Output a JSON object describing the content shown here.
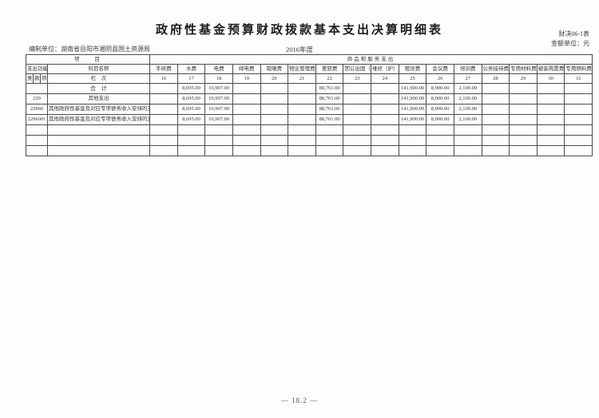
{
  "page": {
    "title": "政府性基金预算财政拨款基本支出决算明细表",
    "form_code": "财决06-1表",
    "amount_unit": "金额单位：元",
    "prepared_by": "编制单位：湖南省岳阳市湘阴县国土资源局",
    "fiscal_year": "2016年度",
    "page_number": "— 18.2 —"
  },
  "table": {
    "project_header": "项　　目",
    "group_header": "商品和服务支出",
    "code_header": "支出功能分类科目编码",
    "subject_header": "科目名称",
    "code_levels": [
      "类",
      "款",
      "项"
    ],
    "column_index_label": "栏　次",
    "columns": [
      {
        "label": "手续费",
        "index": "16"
      },
      {
        "label": "水费",
        "index": "17"
      },
      {
        "label": "电费",
        "index": "18"
      },
      {
        "label": "邮电费",
        "index": "19"
      },
      {
        "label": "取暖费",
        "index": "20"
      },
      {
        "label": "物业管理费",
        "index": "21"
      },
      {
        "label": "差旅费",
        "index": "22"
      },
      {
        "label": "因公出国（境）费用",
        "index": "23"
      },
      {
        "label": "维修（护）费",
        "index": "24"
      },
      {
        "label": "租赁费",
        "index": "25"
      },
      {
        "label": "会议费",
        "index": "26"
      },
      {
        "label": "培训费",
        "index": "27"
      },
      {
        "label": "公务接待费",
        "index": "28"
      },
      {
        "label": "专用材料费",
        "index": "29"
      },
      {
        "label": "被装购置费",
        "index": "30"
      },
      {
        "label": "专用燃料费",
        "index": "31"
      }
    ],
    "rows": [
      {
        "code": "",
        "name": "合　计",
        "values": [
          "",
          "8,695.00",
          "10,907.00",
          "",
          "",
          "",
          "88,761.00",
          "",
          "",
          "141,900.00",
          "8,900.00",
          "2,100.00",
          "",
          "",
          "",
          ""
        ]
      },
      {
        "code": "229",
        "name": "其他支出",
        "values": [
          "",
          "8,695.00",
          "10,907.00",
          "",
          "",
          "",
          "88,761.00",
          "",
          "",
          "141,900.00",
          "8,900.00",
          "2,100.00",
          "",
          "",
          "",
          ""
        ]
      },
      {
        "code": "22960",
        "name": "其他政府性基金及对应专项债务收入安排的支出",
        "values": [
          "",
          "8,695.00",
          "10,907.00",
          "",
          "",
          "",
          "88,761.00",
          "",
          "",
          "141,900.00",
          "8,900.00",
          "2,100.00",
          "",
          "",
          "",
          ""
        ]
      },
      {
        "code": "2296001",
        "name": "其他政府性基金及对应专项债务收入安排的支出",
        "values": [
          "",
          "8,695.00",
          "10,907.00",
          "",
          "",
          "",
          "88,761.00",
          "",
          "",
          "141,900.00",
          "8,900.00",
          "2,100.00",
          "",
          "",
          "",
          ""
        ]
      },
      {
        "code": "",
        "name": "",
        "values": [
          "",
          "",
          "",
          "",
          "",
          "",
          "",
          "",
          "",
          "",
          "",
          "",
          "",
          "",
          "",
          ""
        ]
      },
      {
        "code": "",
        "name": "",
        "values": [
          "",
          "",
          "",
          "",
          "",
          "",
          "",
          "",
          "",
          "",
          "",
          "",
          "",
          "",
          "",
          ""
        ]
      },
      {
        "code": "",
        "name": "",
        "values": [
          "",
          "",
          "",
          "",
          "",
          "",
          "",
          "",
          "",
          "",
          "",
          "",
          "",
          "",
          "",
          ""
        ]
      }
    ]
  }
}
